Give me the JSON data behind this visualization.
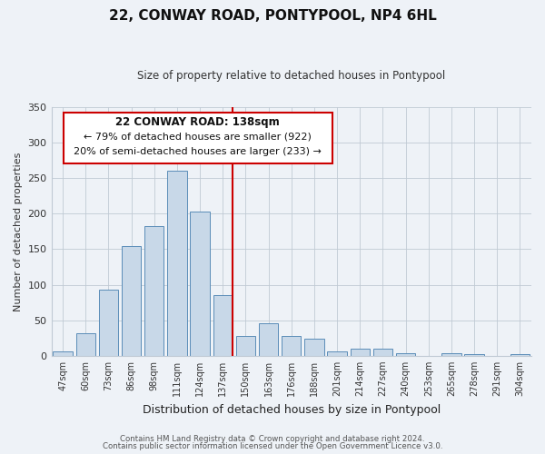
{
  "title": "22, CONWAY ROAD, PONTYPOOL, NP4 6HL",
  "subtitle": "Size of property relative to detached houses in Pontypool",
  "xlabel": "Distribution of detached houses by size in Pontypool",
  "ylabel": "Number of detached properties",
  "bar_labels": [
    "47sqm",
    "60sqm",
    "73sqm",
    "86sqm",
    "98sqm",
    "111sqm",
    "124sqm",
    "137sqm",
    "150sqm",
    "163sqm",
    "176sqm",
    "188sqm",
    "201sqm",
    "214sqm",
    "227sqm",
    "240sqm",
    "253sqm",
    "265sqm",
    "278sqm",
    "291sqm",
    "304sqm"
  ],
  "bar_values": [
    6,
    32,
    93,
    155,
    182,
    260,
    203,
    85,
    28,
    46,
    28,
    24,
    6,
    10,
    10,
    4,
    0,
    4,
    2,
    0,
    2
  ],
  "bar_color": "#c8d8e8",
  "bar_edge_color": "#5b8db8",
  "vline_color": "#cc0000",
  "annotation_title": "22 CONWAY ROAD: 138sqm",
  "annotation_line1": "← 79% of detached houses are smaller (922)",
  "annotation_line2": "20% of semi-detached houses are larger (233) →",
  "annotation_box_color": "#ffffff",
  "annotation_box_edge": "#cc0000",
  "ylim": [
    0,
    350
  ],
  "yticks": [
    0,
    50,
    100,
    150,
    200,
    250,
    300,
    350
  ],
  "footer1": "Contains HM Land Registry data © Crown copyright and database right 2024.",
  "footer2": "Contains public sector information licensed under the Open Government Licence v3.0.",
  "bg_color": "#eef2f7",
  "plot_bg_color": "#eef2f7"
}
